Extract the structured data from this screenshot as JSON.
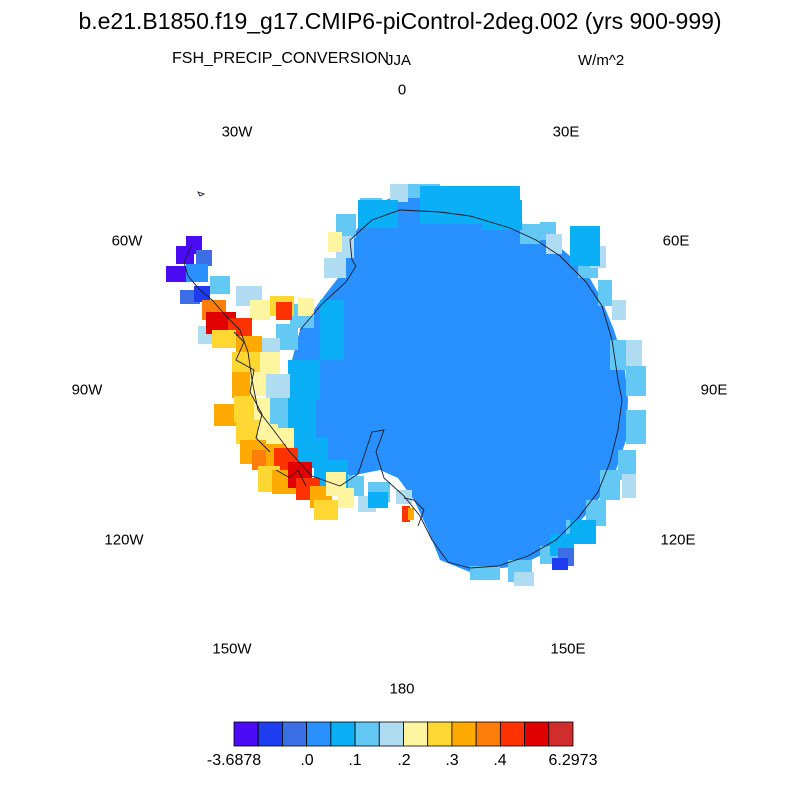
{
  "title": "b.e21.B1850.f19_g17.CMIP6-piControl-2deg.002 (yrs 900-999)",
  "variable": "FSH_PRECIP_CONVERSION",
  "season": "JJA",
  "units": "W/m^2",
  "longitude_labels": {
    "lon_0": "0",
    "lon_30e": "30E",
    "lon_60e": "60E",
    "lon_90e": "90E",
    "lon_120e": "120E",
    "lon_150e": "150E",
    "lon_180": "180",
    "lon_150w": "150W",
    "lon_120w": "120W",
    "lon_90w": "90W",
    "lon_60w": "60W",
    "lon_30w": "30W"
  },
  "colorbar": {
    "colors": [
      "#4b0cf5",
      "#1e3cf0",
      "#3c6ee6",
      "#2891ff",
      "#0aaff5",
      "#64c8f5",
      "#afdcf0",
      "#fff5a0",
      "#ffd732",
      "#ffaa00",
      "#ff7d0a",
      "#ff3200",
      "#e10000",
      "#d22d2d"
    ],
    "labels": {
      "min": "-3.6878",
      "l0": ".0",
      "l1": ".1",
      "l2": ".2",
      "l3": ".3",
      "l4": ".4",
      "max": "6.2973"
    }
  }
}
